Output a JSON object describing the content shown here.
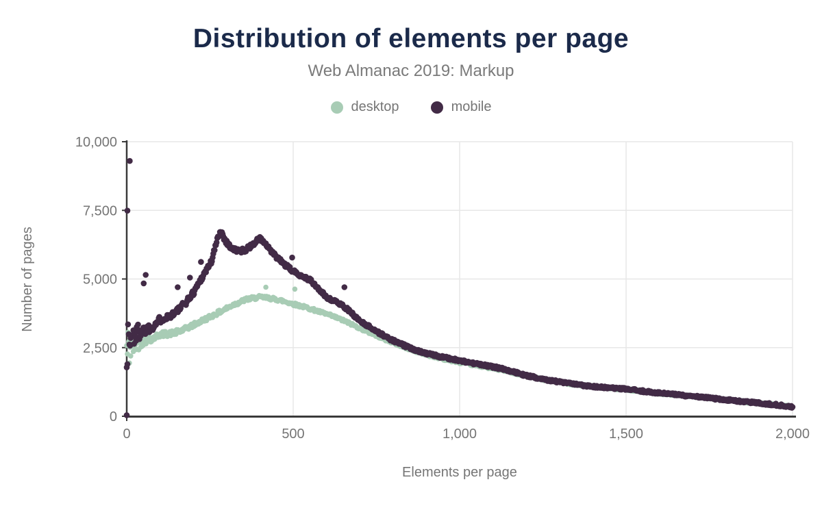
{
  "header": {
    "title": "Distribution of elements per page",
    "subtitle": "Web Almanac 2019: Markup",
    "title_color": "#1b2a4a",
    "subtitle_color": "#7a7a7a"
  },
  "legend": [
    {
      "label": "desktop",
      "color": "#a8ccb5"
    },
    {
      "label": "mobile",
      "color": "#422b46"
    }
  ],
  "chart_data": {
    "type": "scatter",
    "title": "Distribution of elements per page",
    "subtitle": "Web Almanac 2019: Markup",
    "xlabel": "Elements per page",
    "ylabel": "Number of pages",
    "xlim": [
      0,
      2000
    ],
    "ylim": [
      0,
      10000
    ],
    "x_ticks": [
      0,
      500,
      1000,
      1500,
      2000
    ],
    "x_tick_labels": [
      "0",
      "500",
      "1,000",
      "1,500",
      "2,000"
    ],
    "y_ticks": [
      0,
      2500,
      5000,
      7500,
      10000
    ],
    "y_tick_labels": [
      "0",
      "2,500",
      "5,000",
      "7,500",
      "10,000"
    ],
    "grid": true,
    "legend_position": "top",
    "point_step_x": 2,
    "colors": {
      "grid": "#e7e7e7",
      "axis": "#3a3a3a",
      "tick_text": "#757575",
      "axis_title_text": "#757575"
    },
    "series": [
      {
        "name": "desktop",
        "color": "#a8ccb5",
        "radius": 3.8,
        "seed": 42,
        "noise": {
          "a": 35,
          "b": 85,
          "c": 350,
          "d": 1000,
          "e": 20
        },
        "keypoints": [
          [
            0,
            2350
          ],
          [
            20,
            2600
          ],
          [
            40,
            2720
          ],
          [
            60,
            2800
          ],
          [
            80,
            2850
          ],
          [
            100,
            2980
          ],
          [
            130,
            3010
          ],
          [
            160,
            3090
          ],
          [
            200,
            3320
          ],
          [
            240,
            3560
          ],
          [
            280,
            3800
          ],
          [
            320,
            4060
          ],
          [
            360,
            4260
          ],
          [
            400,
            4340
          ],
          [
            430,
            4300
          ],
          [
            460,
            4230
          ],
          [
            500,
            4090
          ],
          [
            540,
            3960
          ],
          [
            580,
            3800
          ],
          [
            620,
            3640
          ],
          [
            660,
            3440
          ],
          [
            700,
            3210
          ],
          [
            740,
            2990
          ],
          [
            780,
            2780
          ],
          [
            820,
            2580
          ],
          [
            860,
            2400
          ],
          [
            900,
            2240
          ],
          [
            950,
            2090
          ],
          [
            1000,
            1960
          ],
          [
            1050,
            1850
          ],
          [
            1100,
            1740
          ],
          [
            1150,
            1630
          ],
          [
            1200,
            1460
          ],
          [
            1250,
            1340
          ],
          [
            1300,
            1240
          ],
          [
            1350,
            1150
          ],
          [
            1400,
            1080
          ],
          [
            1450,
            1020
          ],
          [
            1500,
            975
          ],
          [
            1550,
            905
          ],
          [
            1600,
            835
          ],
          [
            1650,
            785
          ],
          [
            1700,
            725
          ],
          [
            1750,
            655
          ],
          [
            1800,
            595
          ],
          [
            1850,
            535
          ],
          [
            1900,
            475
          ],
          [
            1950,
            415
          ],
          [
            2000,
            335
          ]
        ],
        "outliers": [
          [
            418,
            4700
          ],
          [
            505,
            4630
          ]
        ]
      },
      {
        "name": "mobile",
        "color": "#422b46",
        "radius": 4.3,
        "seed": 1337,
        "noise": {
          "a": 40,
          "b": 110,
          "c": 350,
          "d": 1150,
          "e": 20
        },
        "keypoints": [
          [
            0,
            2600
          ],
          [
            20,
            2950
          ],
          [
            40,
            3080
          ],
          [
            60,
            3170
          ],
          [
            80,
            3300
          ],
          [
            100,
            3520
          ],
          [
            120,
            3620
          ],
          [
            140,
            3730
          ],
          [
            160,
            3930
          ],
          [
            180,
            4180
          ],
          [
            200,
            4500
          ],
          [
            220,
            4930
          ],
          [
            240,
            5350
          ],
          [
            255,
            5650
          ],
          [
            270,
            6350
          ],
          [
            282,
            6780
          ],
          [
            292,
            6500
          ],
          [
            305,
            6250
          ],
          [
            320,
            6080
          ],
          [
            340,
            6020
          ],
          [
            360,
            6080
          ],
          [
            380,
            6280
          ],
          [
            400,
            6480
          ],
          [
            415,
            6300
          ],
          [
            430,
            6050
          ],
          [
            450,
            5800
          ],
          [
            475,
            5520
          ],
          [
            500,
            5280
          ],
          [
            525,
            5120
          ],
          [
            550,
            4970
          ],
          [
            575,
            4650
          ],
          [
            600,
            4340
          ],
          [
            625,
            4190
          ],
          [
            650,
            4030
          ],
          [
            675,
            3760
          ],
          [
            700,
            3480
          ],
          [
            725,
            3290
          ],
          [
            750,
            3100
          ],
          [
            775,
            2920
          ],
          [
            800,
            2760
          ],
          [
            850,
            2490
          ],
          [
            900,
            2290
          ],
          [
            950,
            2150
          ],
          [
            1000,
            2030
          ],
          [
            1050,
            1910
          ],
          [
            1100,
            1800
          ],
          [
            1140,
            1700
          ],
          [
            1200,
            1480
          ],
          [
            1250,
            1360
          ],
          [
            1300,
            1250
          ],
          [
            1350,
            1160
          ],
          [
            1400,
            1090
          ],
          [
            1450,
            1030
          ],
          [
            1500,
            990
          ],
          [
            1550,
            915
          ],
          [
            1600,
            845
          ],
          [
            1650,
            790
          ],
          [
            1700,
            730
          ],
          [
            1750,
            665
          ],
          [
            1800,
            600
          ],
          [
            1850,
            540
          ],
          [
            1900,
            480
          ],
          [
            1950,
            420
          ],
          [
            2000,
            340
          ]
        ],
        "outliers": [
          [
            0,
            40
          ],
          [
            2,
            7490
          ],
          [
            9,
            9300
          ],
          [
            51,
            4840
          ],
          [
            57,
            5150
          ],
          [
            153,
            4700
          ],
          [
            190,
            5050
          ],
          [
            223,
            5620
          ],
          [
            497,
            5780
          ],
          [
            654,
            4700
          ]
        ]
      }
    ]
  }
}
